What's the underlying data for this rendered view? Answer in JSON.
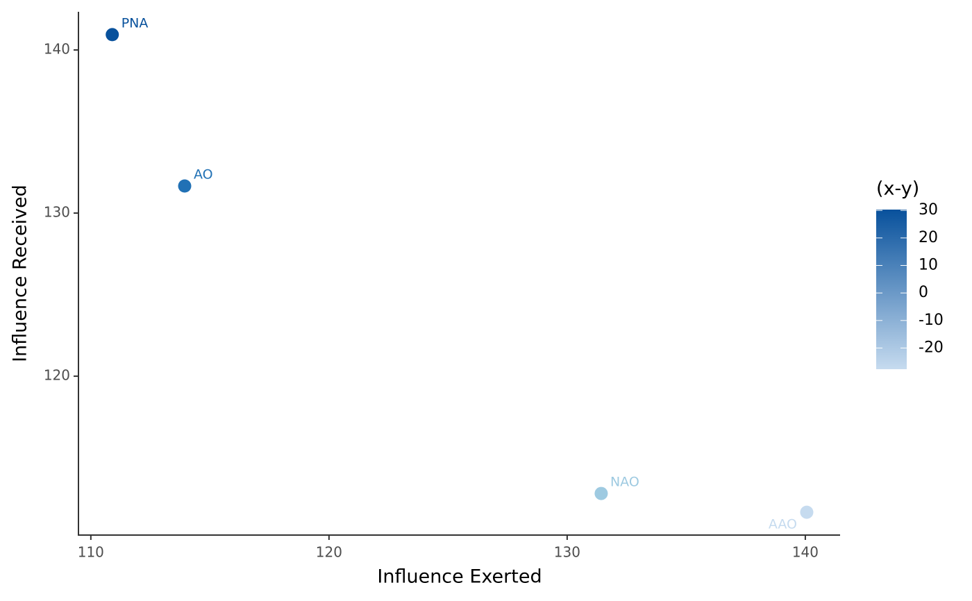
{
  "chart_data": {
    "type": "scatter",
    "x_label": "Influence Exerted",
    "y_label": "Influence Received",
    "labels": [
      "PNA",
      "AO",
      "NAO",
      "AAO"
    ],
    "x": [
      110.9,
      113.94,
      131.43,
      140.06
    ],
    "values": [
      140.94,
      131.66,
      112.81,
      111.66
    ],
    "colors": [
      "#08519c",
      "#2171b5",
      "#9ecae1",
      "#c6dbef"
    ],
    "xlim": [
      109.48,
      141.46
    ],
    "xticks": [
      110,
      120,
      130,
      140
    ],
    "ylim": [
      110.26,
      142.34
    ],
    "yticks": [
      120,
      130,
      140
    ],
    "colorbar": {
      "title": "(x-y)",
      "lim": [
        -27.7,
        30.3
      ],
      "ticks": [
        30,
        20,
        10,
        0,
        -10,
        -20
      ],
      "colors": [
        "#c6dbef",
        "#08519c"
      ]
    }
  }
}
